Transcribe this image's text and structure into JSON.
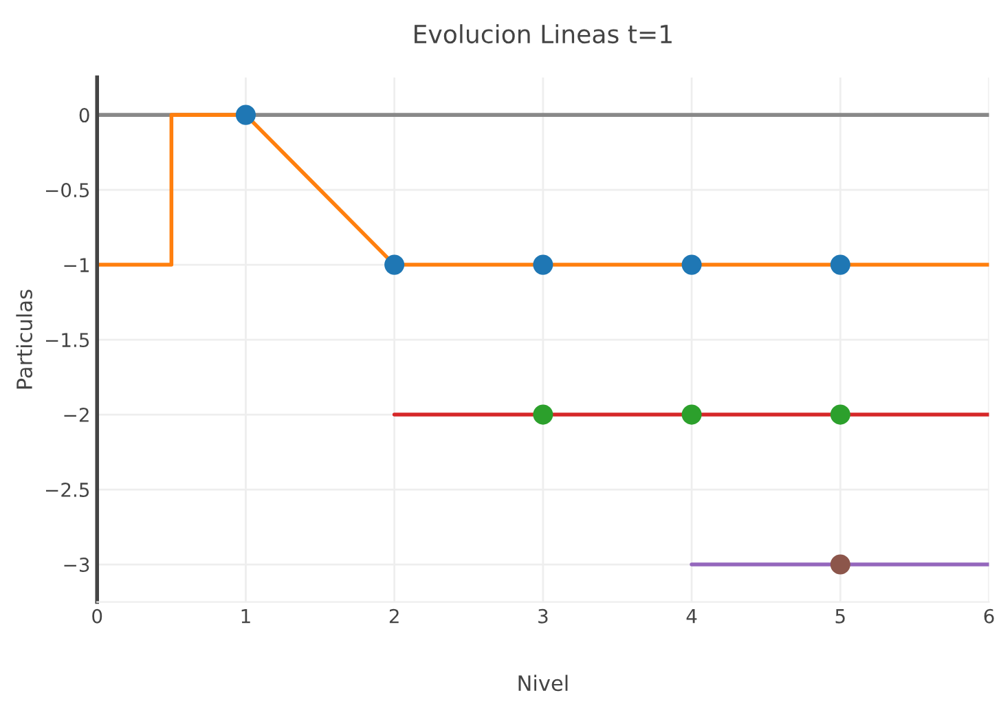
{
  "chart_data": {
    "type": "line",
    "title": "Evolucion Lineas t=1",
    "xlabel": "Nivel",
    "ylabel": "Particulas",
    "xlim": [
      0,
      6
    ],
    "xticks": [
      0,
      1,
      2,
      3,
      4,
      5,
      6
    ],
    "ylim": [
      -3.25,
      0.25
    ],
    "yticks": [
      0,
      {
        "value": -0.5,
        "label": "−0.5"
      },
      {
        "value": -1,
        "label": "−1"
      },
      {
        "value": -1.5,
        "label": "−1.5"
      },
      {
        "value": -2,
        "label": "−2"
      },
      {
        "value": -2.5,
        "label": "−2.5"
      },
      {
        "value": -3,
        "label": "−3"
      }
    ],
    "grid": true,
    "legend": false,
    "ref_lines": [
      {
        "axis": "y",
        "value": 0,
        "color": "#888888"
      }
    ],
    "series": [
      {
        "marker": "none",
        "color": "#ff7f0e",
        "x": [
          0,
          0.5,
          0.5,
          1,
          2,
          6
        ],
        "values": [
          -1,
          -1,
          0,
          0,
          -1,
          -1
        ]
      },
      {
        "type": "scatter",
        "marker": "circle",
        "color": "#1f77b4",
        "x": [
          1,
          2,
          3,
          4,
          5
        ],
        "values": [
          0,
          -1,
          -1,
          -1,
          -1
        ]
      },
      {
        "marker": "none",
        "color": "#d62728",
        "x": [
          2,
          6
        ],
        "values": [
          -2,
          -2
        ]
      },
      {
        "type": "scatter",
        "marker": "circle",
        "color": "#2ca02c",
        "x": [
          3,
          4,
          5
        ],
        "values": [
          -2,
          -2,
          -2
        ]
      },
      {
        "marker": "none",
        "color": "#9467bd",
        "x": [
          4,
          6
        ],
        "values": [
          -3,
          -3
        ]
      },
      {
        "type": "scatter",
        "marker": "circle",
        "color": "#8c564b",
        "x": [
          5
        ],
        "values": [
          -3
        ]
      }
    ]
  }
}
